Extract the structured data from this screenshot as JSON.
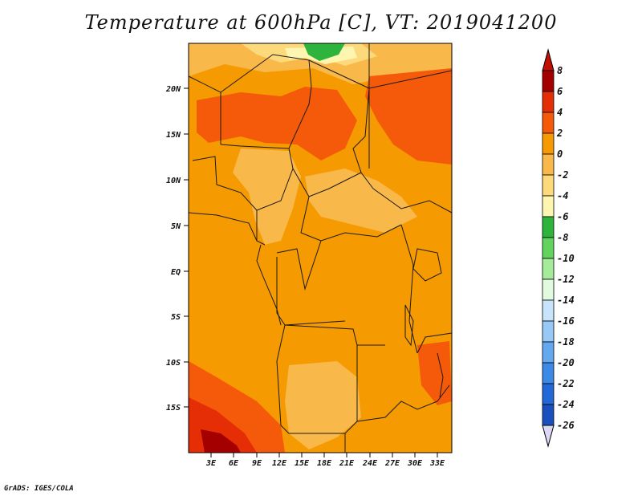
{
  "title": "Temperature at 600hPa [C], VT: 2019041200",
  "credit": "GrADS: IGES/COLA",
  "map": {
    "lat_labels": [
      "20N",
      "15N",
      "10N",
      "5N",
      "EQ",
      "5S",
      "10S",
      "15S"
    ],
    "lon_labels": [
      "3E",
      "6E",
      "9E",
      "12E",
      "15E",
      "18E",
      "21E",
      "24E",
      "27E",
      "30E",
      "33E"
    ]
  },
  "colorbar": {
    "levels": [
      {
        "label": "8",
        "color": "#a50000"
      },
      {
        "label": "6",
        "color": "#e52d06"
      },
      {
        "label": "4",
        "color": "#f55a0b"
      },
      {
        "label": "2",
        "color": "#f59a00"
      },
      {
        "label": "0",
        "color": "#f9b84a"
      },
      {
        "label": "-2",
        "color": "#fcd97a"
      },
      {
        "label": "-4",
        "color": "#fdf5b0"
      },
      {
        "label": "-6",
        "color": "#2eb43c"
      },
      {
        "label": "-8",
        "color": "#62d45e"
      },
      {
        "label": "-10",
        "color": "#a5eb9a"
      },
      {
        "label": "-12",
        "color": "#e2fadf"
      },
      {
        "label": "-14",
        "color": "#c8e4fb"
      },
      {
        "label": "-16",
        "color": "#97c9f6"
      },
      {
        "label": "-18",
        "color": "#64a8ef"
      },
      {
        "label": "-20",
        "color": "#3d8ae6"
      },
      {
        "label": "-22",
        "color": "#2468d8"
      },
      {
        "label": "-24",
        "color": "#1a4fbd"
      },
      {
        "label": "-26",
        "color": "#12318f"
      }
    ],
    "top_color": "#c30f00",
    "bottom_color": "#dcd8f5",
    "lowest_color": "#0a0a5e"
  }
}
